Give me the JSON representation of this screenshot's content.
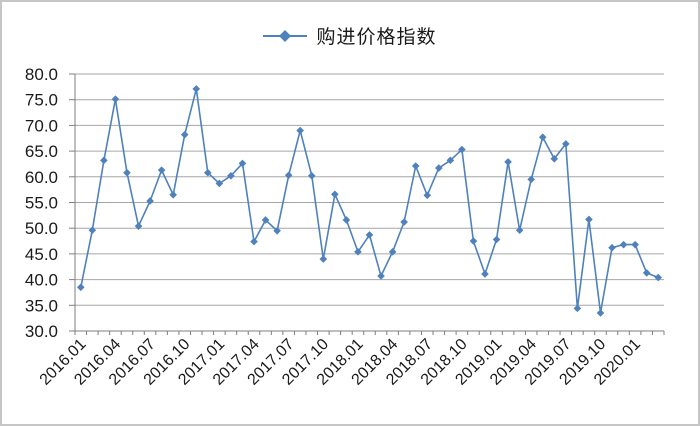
{
  "legend": {
    "label": "购进价格指数"
  },
  "colors": {
    "series": "#4F81BD",
    "gridline": "#A6A6A6",
    "axis": "#7F7F7F",
    "text": "#1A1A1A",
    "frame_border": "#C6C6C6"
  },
  "chart_data": {
    "type": "line",
    "title": "",
    "legend_position": "top",
    "marker": "diamond",
    "grid": "horizontal",
    "ylim": [
      30,
      80
    ],
    "ytick_step": 5,
    "ytick_format": "one-decimal",
    "xtick_label_every": 3,
    "x": [
      "2016.01",
      "2016.02",
      "2016.03",
      "2016.04",
      "2016.05",
      "2016.06",
      "2016.07",
      "2016.08",
      "2016.09",
      "2016.10",
      "2016.11",
      "2016.12",
      "2017.01",
      "2017.02",
      "2017.03",
      "2017.04",
      "2017.05",
      "2017.06",
      "2017.07",
      "2017.08",
      "2017.09",
      "2017.10",
      "2017.11",
      "2017.12",
      "2018.01",
      "2018.02",
      "2018.03",
      "2018.04",
      "2018.05",
      "2018.06",
      "2018.07",
      "2018.08",
      "2018.09",
      "2018.10",
      "2018.11",
      "2018.12",
      "2019.01",
      "2019.02",
      "2019.03",
      "2019.04",
      "2019.05",
      "2019.06",
      "2019.07",
      "2019.08",
      "2019.09",
      "2019.10",
      "2019.11",
      "2019.12",
      "2020.01",
      "2020.02",
      "2020.03"
    ],
    "series": [
      {
        "name": "购进价格指数",
        "color": "#4F81BD",
        "values": [
          38.5,
          49.6,
          63.2,
          75.1,
          60.8,
          50.4,
          55.3,
          61.3,
          56.5,
          68.2,
          77.1,
          60.8,
          58.7,
          60.2,
          62.6,
          47.4,
          51.6,
          49.5,
          60.3,
          69.0,
          60.2,
          44.0,
          56.6,
          51.6,
          45.4,
          48.7,
          40.7,
          45.4,
          51.2,
          62.1,
          56.4,
          61.7,
          63.2,
          65.3,
          47.5,
          41.1,
          47.8,
          62.9,
          49.6,
          59.5,
          67.7,
          63.5,
          66.4,
          34.4,
          51.7,
          33.5,
          46.2,
          46.8,
          46.8,
          41.3,
          40.4
        ]
      }
    ]
  }
}
